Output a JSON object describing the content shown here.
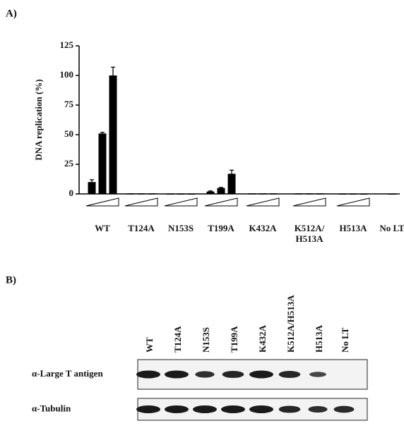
{
  "chart_data": {
    "type": "bar",
    "panel_label": "A)",
    "y_label": "DNA replication (%)",
    "groups": [
      {
        "label_lines": [
          "WT"
        ],
        "values": [
          10,
          51,
          100
        ],
        "errors": [
          2,
          1,
          7
        ]
      },
      {
        "label_lines": [
          "T124A"
        ],
        "values": [
          0.5,
          0.5,
          0.5
        ],
        "errors": [
          0,
          0,
          0
        ]
      },
      {
        "label_lines": [
          "N153S"
        ],
        "values": [
          0.3,
          0.3,
          0.3
        ],
        "errors": [
          0,
          0,
          0
        ]
      },
      {
        "label_lines": [
          "T199A"
        ],
        "values": [
          2,
          5,
          17
        ],
        "errors": [
          0.5,
          0.5,
          3
        ]
      },
      {
        "label_lines": [
          "K432A"
        ],
        "values": [
          0.5,
          0.5,
          0.5
        ],
        "errors": [
          0,
          0,
          0
        ]
      },
      {
        "label_lines": [
          "K512A/",
          "H513A"
        ],
        "values": [
          0.5,
          0.5,
          0.5
        ],
        "errors": [
          0,
          0,
          0
        ]
      },
      {
        "label_lines": [
          "H513A"
        ],
        "values": [
          0.3,
          0.3,
          0.3
        ],
        "errors": [
          0,
          0,
          0
        ]
      },
      {
        "label_lines": [
          "No LT"
        ],
        "values": [
          0.3
        ],
        "errors": [
          0
        ]
      }
    ],
    "color": "#000000",
    "ylim": [
      0,
      125
    ],
    "yticks": [
      0,
      25,
      50,
      75,
      100,
      125
    ]
  },
  "blot": {
    "panel_label": "B)",
    "lanes": [
      "WT",
      "T124A",
      "N153S",
      "T199A",
      "K432A",
      "K512A/H513A",
      "H513A",
      "No LT"
    ],
    "rows": [
      "α-Large T antigen",
      "α-Tubulin"
    ]
  }
}
